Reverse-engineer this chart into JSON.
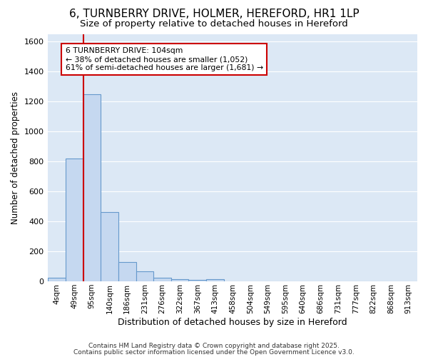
{
  "title1": "6, TURNBERRY DRIVE, HOLMER, HEREFORD, HR1 1LP",
  "title2": "Size of property relative to detached houses in Hereford",
  "xlabel": "Distribution of detached houses by size in Hereford",
  "ylabel": "Number of detached properties",
  "categories": [
    "4sqm",
    "49sqm",
    "95sqm",
    "140sqm",
    "186sqm",
    "231sqm",
    "276sqm",
    "322sqm",
    "367sqm",
    "413sqm",
    "458sqm",
    "504sqm",
    "549sqm",
    "595sqm",
    "640sqm",
    "686sqm",
    "731sqm",
    "777sqm",
    "822sqm",
    "868sqm",
    "913sqm"
  ],
  "values": [
    22,
    820,
    1250,
    460,
    130,
    65,
    25,
    15,
    8,
    15,
    2,
    0,
    0,
    0,
    0,
    0,
    0,
    0,
    0,
    0,
    0
  ],
  "bar_color": "#c5d8f0",
  "bar_edge_color": "#6699cc",
  "red_line_x": 1.5,
  "annotation_text": "6 TURNBERRY DRIVE: 104sqm\n← 38% of detached houses are smaller (1,052)\n61% of semi-detached houses are larger (1,681) →",
  "annotation_box_color": "#ffffff",
  "annotation_box_edge": "#cc0000",
  "ylim": [
    0,
    1650
  ],
  "yticks": [
    0,
    200,
    400,
    600,
    800,
    1000,
    1200,
    1400,
    1600
  ],
  "bg_color": "#dce8f5",
  "grid_color": "#ffffff",
  "fig_bg_color": "#ffffff",
  "footer1": "Contains HM Land Registry data © Crown copyright and database right 2025.",
  "footer2": "Contains public sector information licensed under the Open Government Licence v3.0.",
  "title1_fontsize": 11,
  "title2_fontsize": 9.5
}
